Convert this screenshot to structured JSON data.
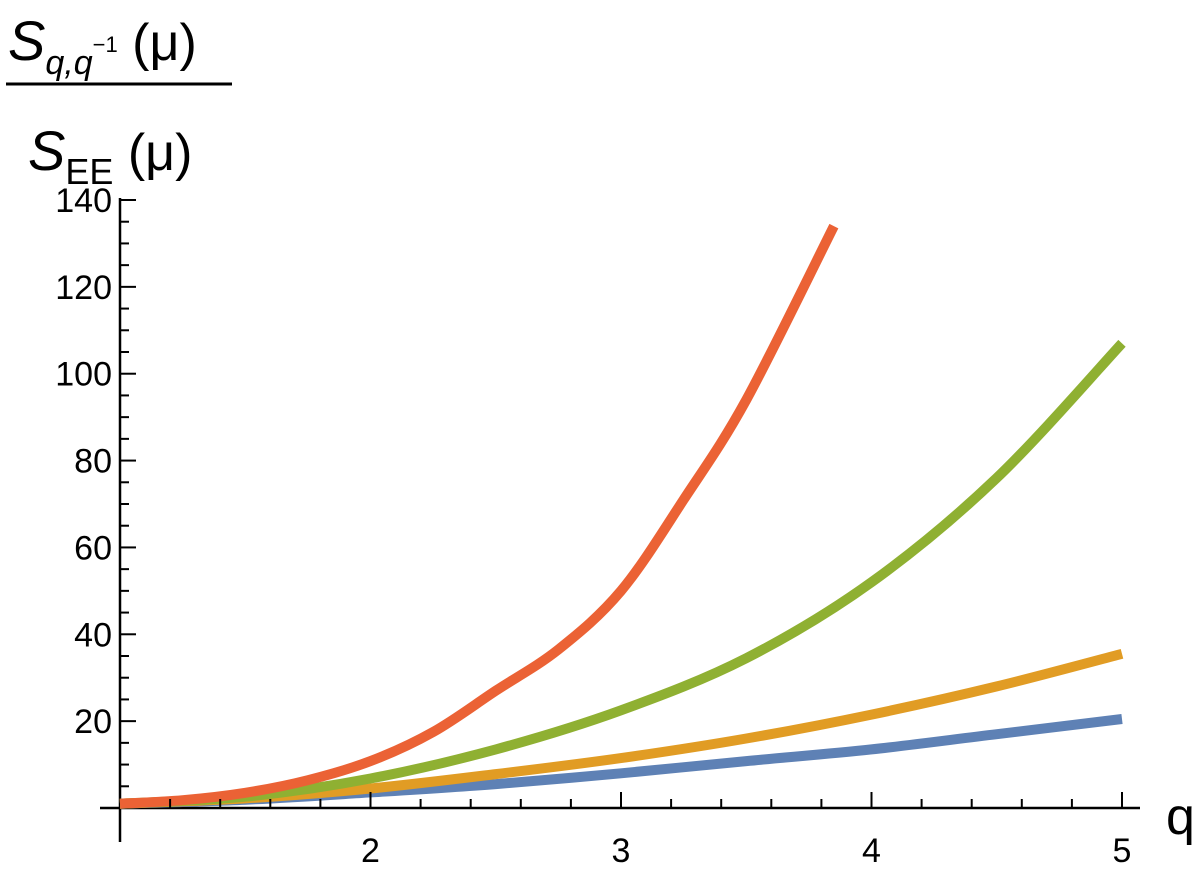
{
  "chart_data": {
    "type": "line",
    "xlabel": "q",
    "ylabel": {
      "numerator_main": "S",
      "numerator_sub": "q,q",
      "numerator_sup": "−1",
      "numerator_arg": " (μ)",
      "denominator_main": "S",
      "denominator_sub": "EE",
      "denominator_arg": " (μ)"
    },
    "xlim": [
      1,
      5
    ],
    "ylim": [
      0,
      140
    ],
    "x_ticks": [
      2,
      3,
      4,
      5
    ],
    "x_tick_labels": [
      "2",
      "3",
      "4",
      "5"
    ],
    "y_ticks": [
      20,
      40,
      60,
      80,
      100,
      120,
      140
    ],
    "y_tick_labels": [
      "20",
      "40",
      "60",
      "80",
      "100",
      "120",
      "140"
    ],
    "grid": false,
    "legend": "none",
    "series": [
      {
        "color": "#5E81B5",
        "x": [
          1,
          1.5,
          2,
          2.5,
          3,
          3.5,
          4,
          4.5,
          5
        ],
        "y": [
          1,
          1.9,
          3.6,
          5.5,
          8,
          10.8,
          13.5,
          17,
          20.5
        ]
      },
      {
        "color": "#E19C24",
        "x": [
          1,
          1.5,
          2,
          2.5,
          3,
          3.5,
          4,
          4.5,
          5
        ],
        "y": [
          1,
          2.2,
          4.5,
          7.8,
          11.5,
          16,
          21.5,
          28,
          35.5
        ]
      },
      {
        "color": "#8FB032",
        "x": [
          1,
          1.5,
          2,
          2.5,
          3,
          3.5,
          4,
          4.5,
          5
        ],
        "y": [
          1,
          2.6,
          6.8,
          13.5,
          22.5,
          34.5,
          52,
          76,
          107
        ]
      },
      {
        "color": "#EB6235",
        "x": [
          1,
          1.25,
          1.5,
          1.75,
          2,
          2.25,
          2.5,
          2.75,
          3,
          3.25,
          3.5,
          3.85
        ],
        "y": [
          1,
          1.8,
          3.5,
          6.4,
          10.8,
          17.5,
          27,
          36.5,
          50,
          71,
          94,
          134
        ]
      }
    ]
  }
}
